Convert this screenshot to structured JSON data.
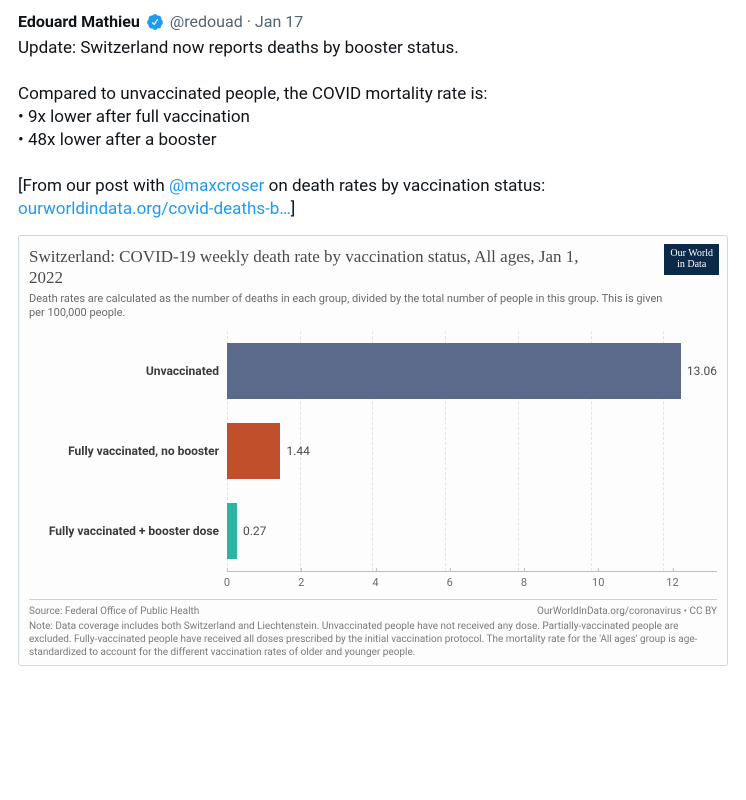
{
  "tweet": {
    "author_name": "Edouard Mathieu",
    "handle": "@redouad",
    "date": "Jan 17",
    "dot": "·",
    "body_line1": "Update: Switzerland now reports deaths by booster status.",
    "body_line2": "Compared to unvaccinated people, the COVID mortality rate is:",
    "bullet1": "• 9x lower after full vaccination",
    "bullet2": "• 48x lower after a booster",
    "body_line3_pre": "[From our post with ",
    "mention": "@maxcroser",
    "body_line3_mid": " on death rates by vaccination status: ",
    "link_text": "ourworldindata.org/covid-deaths-b…",
    "body_line3_post": "]"
  },
  "chart": {
    "type": "bar-horizontal",
    "owid_badge_line1": "Our World",
    "owid_badge_line2": "in Data",
    "title": "Switzerland: COVID-19 weekly death rate by vaccination status, All ages, Jan 1, 2022",
    "subtitle": "Death rates are calculated as the number of deaths in each group, divided by the total number of people in this group. This is given per 100,000 people.",
    "categories": [
      "Unvaccinated",
      "Fully vaccinated, no booster",
      "Fully vaccinated + booster dose"
    ],
    "values": [
      13.06,
      1.44,
      0.27
    ],
    "bar_colors": [
      "#5b6a8a",
      "#c14f2b",
      "#2db3a1"
    ],
    "xlim": [
      0,
      13.2
    ],
    "xticks": [
      0,
      2,
      4,
      6,
      8,
      10,
      12
    ],
    "xtick_labels": [
      "0",
      "2",
      "4",
      "6",
      "8",
      "10",
      "12"
    ],
    "background_color": "#fdfdfd",
    "grid_color": "#e4e4e4",
    "label_fontsize": 12,
    "footer_source": "Source: Federal Office of Public Health",
    "footer_right": "OurWorldInData.org/coronavirus • CC BY",
    "footer_note": "Note: Data coverage includes both Switzerland and Liechtenstein. Unvaccinated people have not received any dose. Partially-vaccinated people are excluded. Fully-vaccinated people have received all doses prescribed by the initial vaccination protocol. The mortality rate for the 'All ages' group is age-standardized to account for the different vaccination rates of older and younger people."
  }
}
